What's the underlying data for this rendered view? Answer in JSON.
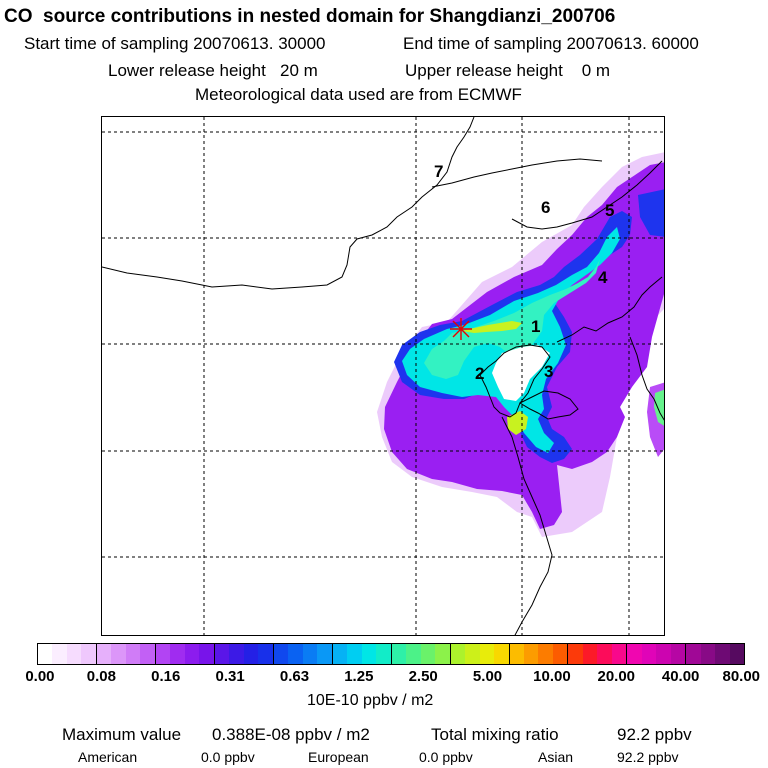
{
  "header": {
    "title": "CO  source contributions in nested domain for Shangdianzi_200706",
    "start_label": "Start time of sampling 20070613. 30000",
    "end_label": "End time of sampling 20070613. 60000",
    "lower_label": "Lower release height   20 m",
    "upper_label": "Upper release height    0 m",
    "met_label": "Meteorological data used are from ECMWF"
  },
  "map": {
    "site_labels": [
      "1",
      "2",
      "3",
      "4",
      "5",
      "6",
      "7"
    ],
    "receptor": "Shangdianzi",
    "colors": {
      "coast": "#000000",
      "grid": "#000000",
      "purple": "#9a1ff2",
      "violet": "#b94cf7",
      "light_violet": "#dda0f7",
      "blue": "#1e34ee",
      "cyan": "#00e6e6",
      "aqua": "#33f2c2",
      "green": "#66f28c",
      "yellow_green": "#c8f21f",
      "receptor": "#e60000"
    }
  },
  "colorbar": {
    "colors": [
      "#ffffff",
      "#fbeeff",
      "#f6dcfe",
      "#efc8fd",
      "#e6b0fb",
      "#dc96f9",
      "#d07cf7",
      "#c260f5",
      "#b244f3",
      "#a02cf0",
      "#8c1cee",
      "#7814ea",
      "#5a16e8",
      "#3c1ae6",
      "#2420e6",
      "#1830ea",
      "#1048ee",
      "#0a62f2",
      "#0a7cf4",
      "#0a98f6",
      "#06b2f4",
      "#00cef2",
      "#00e6e6",
      "#12ecc8",
      "#2ef0a8",
      "#4cf288",
      "#6af26a",
      "#8cf24a",
      "#acf22c",
      "#ccf01a",
      "#e8ec0a",
      "#f8d800",
      "#fcbc00",
      "#fc9c00",
      "#fc7c00",
      "#fc5c00",
      "#fc3a0a",
      "#fc1a28",
      "#fc0c5a",
      "#f8088c",
      "#f006b0",
      "#e004b8",
      "#cc04b0",
      "#b606a4",
      "#a00896",
      "#880a86",
      "#6e0a74",
      "#560a60"
    ],
    "ticks": [
      "0.00",
      "0.08",
      "0.16",
      "0.31",
      "0.63",
      "1.25",
      "2.50",
      "5.00",
      "10.00",
      "20.00",
      "40.00",
      "80.00"
    ],
    "unit": "10E-10 ppbv / m2"
  },
  "summary": {
    "max_label": "Maximum value",
    "max_value": "0.388E-08 ppbv / m2",
    "total_label": "Total mixing ratio",
    "total_value": "92.2 ppbv",
    "american_label": "American",
    "american_value": "0.0 ppbv",
    "european_label": "European",
    "european_value": "0.0 ppbv",
    "asian_label": "Asian",
    "asian_value": "92.2 ppbv"
  }
}
